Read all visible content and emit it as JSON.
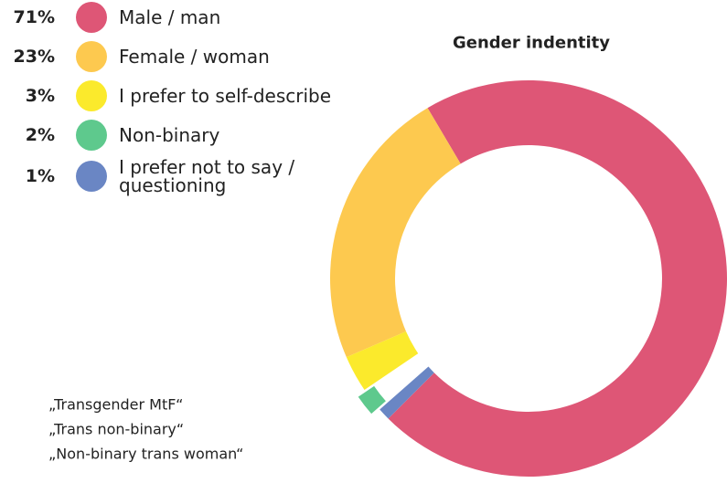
{
  "chart_data": {
    "type": "donut",
    "title": "Gender indentity",
    "categories": [
      "Male / man",
      "Female / woman",
      "I prefer to self-describe",
      "Non-binary",
      "I prefer not to say / questioning"
    ],
    "values": [
      71,
      23,
      3,
      2,
      1
    ],
    "value_labels": [
      "71%",
      "23%",
      "3%",
      "2%",
      "1%"
    ],
    "colors": [
      "#de5676",
      "#fdc94f",
      "#fbea2c",
      "#5ec98d",
      "#6a86c4"
    ],
    "annotations": [
      "„Transgender MtF“",
      "„Trans non-binary“",
      "„Non-binary trans woman“"
    ]
  }
}
